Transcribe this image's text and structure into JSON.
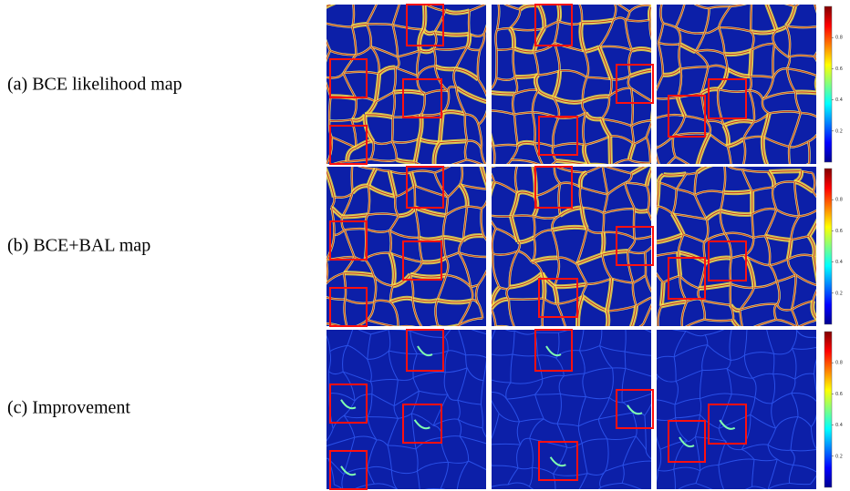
{
  "rows": [
    {
      "label": "(a) BCE likelihood map"
    },
    {
      "label": "(b) BCE+BAL map"
    },
    {
      "label": "(c) Improvement"
    }
  ],
  "colorbar": {
    "lim": [
      0,
      1
    ],
    "ticks": [
      0.2,
      0.4,
      0.6,
      0.8
    ]
  }
}
